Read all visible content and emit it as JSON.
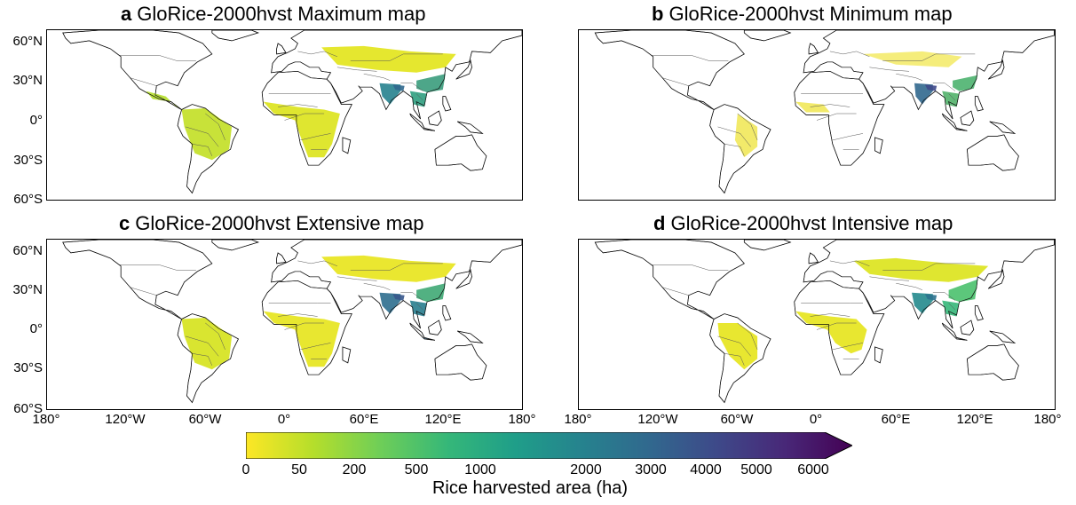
{
  "panels": [
    {
      "letter": "a",
      "title": "GloRice-2000hvst Maximum map"
    },
    {
      "letter": "b",
      "title": "GloRice-2000hvst Minimum map"
    },
    {
      "letter": "c",
      "title": "GloRice-2000hvst Extensive map"
    },
    {
      "letter": "d",
      "title": "GloRice-2000hvst Intensive map"
    }
  ],
  "lat_ticks": [
    "60°N",
    "30°N",
    "0°",
    "30°S",
    "60°S"
  ],
  "lon_ticks": [
    "180°",
    "120°W",
    "60°W",
    "0°",
    "60°E",
    "120°E",
    "180°"
  ],
  "colorbar": {
    "ticks": [
      "0",
      "50",
      "200",
      "500",
      "1000",
      "2000",
      "3000",
      "4000",
      "5000",
      "6000"
    ],
    "label": "Rice harvested area (ha)",
    "colors": [
      "#fde725",
      "#b5de2b",
      "#6ece58",
      "#35b779",
      "#1f9e89",
      "#26828e",
      "#31688e",
      "#3e4989",
      "#482878",
      "#440154"
    ]
  }
}
